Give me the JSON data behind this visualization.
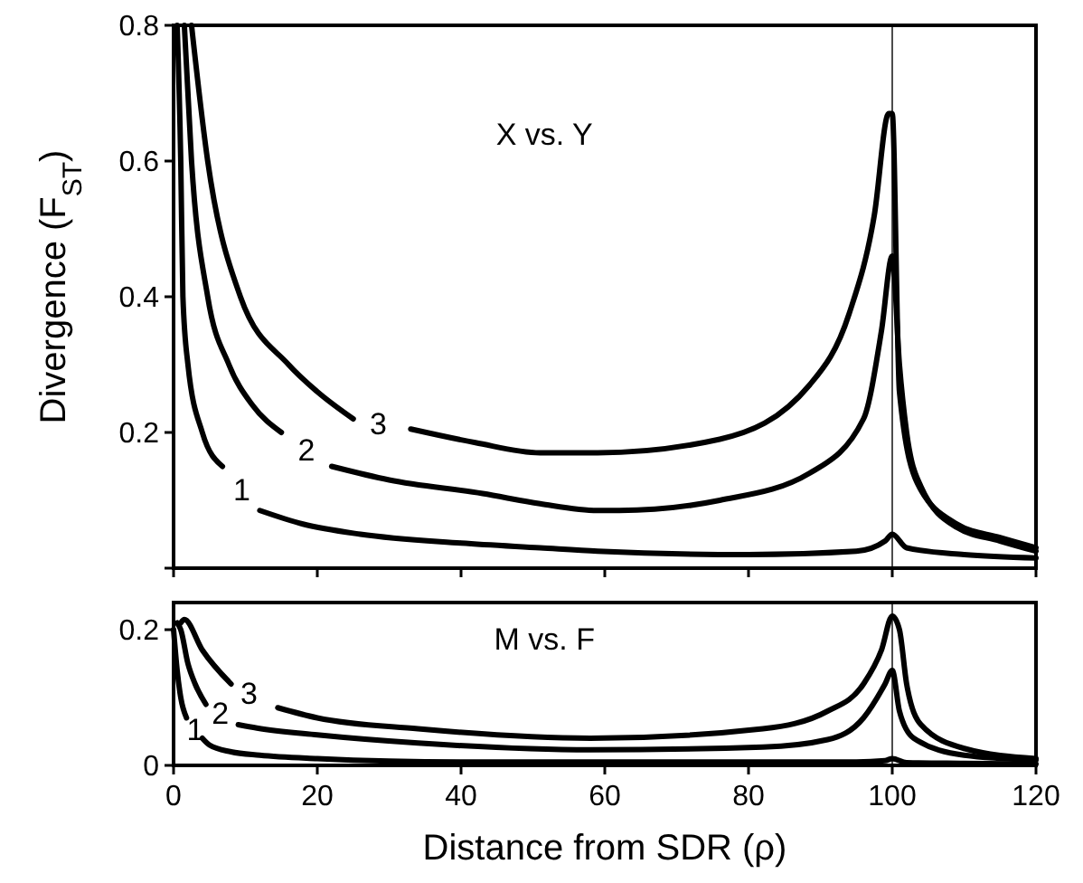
{
  "chart_data": [
    {
      "type": "line",
      "ylabel": "Divergence (F$_{ST}$)",
      "annotations": [
        "X vs. Y"
      ],
      "xlim": [
        0,
        120
      ],
      "ylim": [
        0,
        0.8
      ],
      "xticks": [
        {
          "value": 0,
          "label": null
        },
        {
          "value": 20,
          "label": null
        },
        {
          "value": 40,
          "label": null
        },
        {
          "value": 60,
          "label": null
        },
        {
          "value": 80,
          "label": null
        },
        {
          "value": 100,
          "label": null
        },
        {
          "value": 120,
          "label": null
        }
      ],
      "yticks": [
        {
          "value": 0,
          "label": null
        },
        0.2,
        0.4,
        0.6,
        0.8
      ],
      "tick_labels": "y",
      "grid": false,
      "marker": "none",
      "line_style": "solid",
      "ref_lines": [
        {
          "axis": "x",
          "value": 100,
          "label": null,
          "color": "#000000"
        }
      ],
      "series": [
        {
          "name": "1",
          "color": "#000000",
          "x": [
            0.5,
            1,
            1.3,
            2,
            4,
            6.8,
            9.5,
            12,
            18,
            26,
            40,
            51,
            59,
            80,
            95,
            99,
            100,
            102,
            110,
            120
          ],
          "values": [
            0.8,
            0.6,
            0.4,
            0.3,
            0.2,
            0.15,
            null,
            0.085,
            0.065,
            0.05,
            0.037,
            0.03,
            0.025,
            0.02,
            0.025,
            0.04,
            0.05,
            0.03,
            0.02,
            0.015
          ]
        },
        {
          "name": "2",
          "color": "#000000",
          "x": [
            1.5,
            2.5,
            4.75,
            7.7,
            11,
            15,
            18.5,
            22,
            30,
            43,
            51,
            59,
            62,
            76,
            88.5,
            96,
            98.5,
            100,
            101,
            102,
            104,
            109,
            115,
            120
          ],
          "values": [
            0.8,
            0.6,
            0.4,
            0.3,
            0.24,
            0.2,
            null,
            0.15,
            0.13,
            0.11,
            0.095,
            0.085,
            0.085,
            0.1,
            0.14,
            0.22,
            0.35,
            0.46,
            0.3,
            0.2,
            0.12,
            0.06,
            0.04,
            0.025
          ]
        },
        {
          "name": "3",
          "color": "#000000",
          "x": [
            2.5,
            4.75,
            9.3,
            16,
            20,
            25,
            28.5,
            33,
            42,
            51,
            59,
            76,
            88.5,
            94,
            97.5,
            99.5,
            100,
            101,
            103.5,
            109,
            115,
            120
          ],
          "values": [
            0.8,
            0.6,
            0.4,
            0.3,
            0.26,
            0.22,
            null,
            0.205,
            0.185,
            0.17,
            0.17,
            0.19,
            0.27,
            0.375,
            0.52,
            0.67,
            0.67,
            0.26,
            0.125,
            0.065,
            0.045,
            0.03
          ]
        }
      ]
    },
    {
      "type": "line",
      "xlabel": "Distance from SDR (ρ)",
      "annotations": [
        "M vs. F"
      ],
      "xlim": [
        0,
        120
      ],
      "ylim": [
        0,
        0.24
      ],
      "xticks": [
        0,
        20,
        40,
        60,
        80,
        100,
        120
      ],
      "yticks": [
        0,
        0.2
      ],
      "grid": false,
      "marker": "none",
      "line_style": "solid",
      "ref_lines": [
        {
          "axis": "x",
          "value": 100,
          "label": null,
          "color": "#000000"
        }
      ],
      "series": [
        {
          "name": "1",
          "color": "#000000",
          "x": [
            0,
            0.5,
            1,
            1.8,
            3,
            4,
            5,
            8,
            12,
            20,
            40,
            70,
            95,
            99,
            100,
            102,
            110,
            120
          ],
          "values": [
            0.2,
            0.14,
            0.1,
            0.07,
            null,
            0.04,
            0.03,
            0.02,
            0.015,
            0.01,
            0.005,
            0.005,
            0.005,
            0.007,
            0.01,
            0.004,
            0.003,
            0.002
          ]
        },
        {
          "name": "2",
          "color": "#000000",
          "x": [
            0.5,
            1,
            2,
            3,
            4.5,
            6.5,
            9,
            11.6,
            20,
            34,
            58,
            82,
            91,
            96,
            99,
            100,
            101,
            103,
            110,
            120
          ],
          "values": [
            0.21,
            0.2,
            0.15,
            0.12,
            0.09,
            null,
            0.06,
            0.055,
            0.045,
            0.033,
            0.023,
            0.027,
            0.038,
            0.07,
            0.12,
            0.14,
            0.08,
            0.04,
            0.015,
            0.008
          ]
        },
        {
          "name": "3",
          "color": "#000000",
          "x": [
            1,
            1.5,
            4,
            8,
            10.5,
            14.5,
            20,
            34,
            58,
            82,
            91,
            96,
            98.5,
            100,
            101,
            102,
            104,
            110,
            120
          ],
          "values": [
            0.21,
            0.215,
            0.17,
            0.12,
            null,
            0.085,
            0.07,
            0.054,
            0.04,
            0.054,
            0.08,
            0.12,
            0.17,
            0.22,
            0.2,
            0.12,
            0.06,
            0.025,
            0.01
          ]
        }
      ]
    }
  ]
}
